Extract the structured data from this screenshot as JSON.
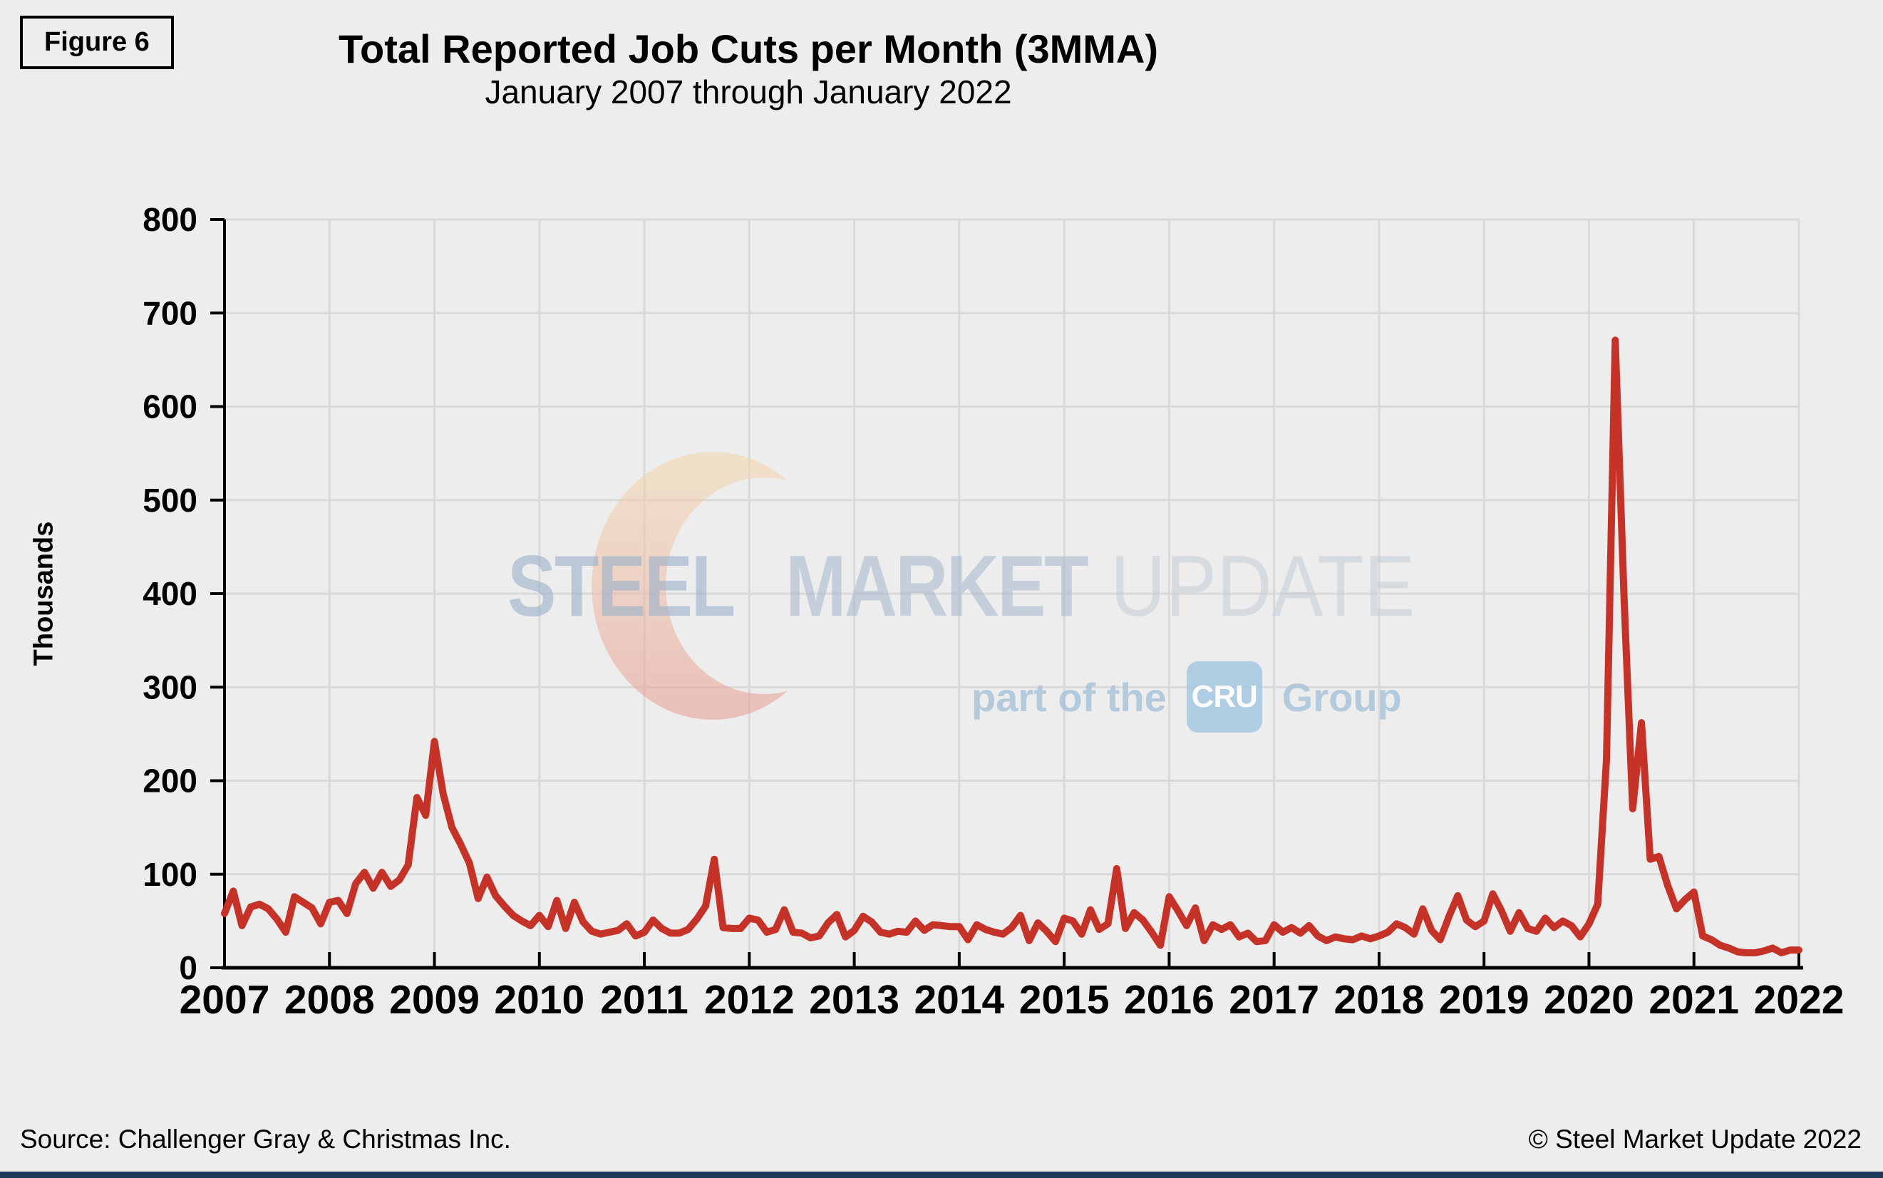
{
  "figure_label": "Figure 6",
  "title": "Total Reported Job Cuts per Month (3MMA)",
  "subtitle": "January 2007 through January 2022",
  "source": "Source: Challenger Gray & Christmas Inc.",
  "copyright": "© Steel Market Update 2022",
  "watermark": {
    "word1": "STEEL",
    "word2": "MARKET",
    "word3": "UPDATE",
    "tagline_prefix": "part of the",
    "tagline_badge": "CRU",
    "tagline_suffix": "Group"
  },
  "colors": {
    "background": "#EDEDED",
    "line": "#C53228",
    "gridline": "#D9D9D9",
    "axis": "#000000",
    "bottom_bar": "#1F3B5C",
    "watermark_steel": "#9CB2CB",
    "watermark_market": "#A3B7CD",
    "watermark_update": "#C4CDD7",
    "watermark_crescent_top": "#F4D7AC",
    "watermark_crescent_bottom": "#E79A92",
    "cru_badge": "#A5C8E1"
  },
  "chart_data": {
    "type": "line",
    "title": "Total Reported Job Cuts per Month (3MMA)",
    "subtitle": "January 2007 through January 2022",
    "xlabel": "",
    "ylabel": "Thousands",
    "ylim": [
      0,
      800
    ],
    "y_ticks": [
      0,
      100,
      200,
      300,
      400,
      500,
      600,
      700,
      800
    ],
    "x_ticks": [
      "2007",
      "2008",
      "2009",
      "2010",
      "2011",
      "2012",
      "2013",
      "2014",
      "2015",
      "2016",
      "2017",
      "2018",
      "2019",
      "2020",
      "2021",
      "2022"
    ],
    "x_start": "2007-01",
    "x_end": "2022-01",
    "points_per_year": 12,
    "grid": true,
    "legend": "none",
    "series": [
      {
        "name": "Total reported job cuts (thousands per month)",
        "values": [
          58,
          82,
          45,
          65,
          68,
          63,
          52,
          38,
          76,
          70,
          64,
          47,
          70,
          72,
          58,
          90,
          102,
          85,
          102,
          87,
          94,
          110,
          182,
          163,
          242,
          186,
          150,
          132,
          112,
          74,
          97,
          77,
          66,
          56,
          50,
          45,
          56,
          44,
          72,
          42,
          70,
          49,
          39,
          36,
          38,
          40,
          47,
          34,
          38,
          51,
          42,
          37,
          37,
          41,
          52,
          66,
          116,
          43,
          42,
          42,
          53,
          51,
          38,
          41,
          62,
          38,
          37,
          32,
          34,
          48,
          57,
          33,
          40,
          55,
          49,
          38,
          36,
          39,
          38,
          50,
          40,
          46,
          45,
          44,
          44,
          30,
          46,
          41,
          38,
          36,
          43,
          56,
          29,
          48,
          39,
          28,
          53,
          50,
          36,
          62,
          41,
          47,
          106,
          42,
          59,
          51,
          38,
          24,
          76,
          61,
          45,
          64,
          29,
          46,
          41,
          46,
          33,
          37,
          28,
          29,
          46,
          38,
          43,
          37,
          45,
          34,
          29,
          33,
          31,
          30,
          34,
          31,
          34,
          38,
          47,
          43,
          36,
          63,
          40,
          30,
          55,
          77,
          51,
          44,
          50,
          79,
          61,
          39,
          59,
          42,
          39,
          53,
          43,
          50,
          45,
          33,
          47,
          68,
          222,
          671,
          397,
          170,
          262,
          116,
          119,
          88,
          63,
          73,
          81,
          34,
          30,
          24,
          21,
          17,
          16,
          16,
          18,
          21,
          16,
          19,
          19
        ]
      }
    ]
  }
}
